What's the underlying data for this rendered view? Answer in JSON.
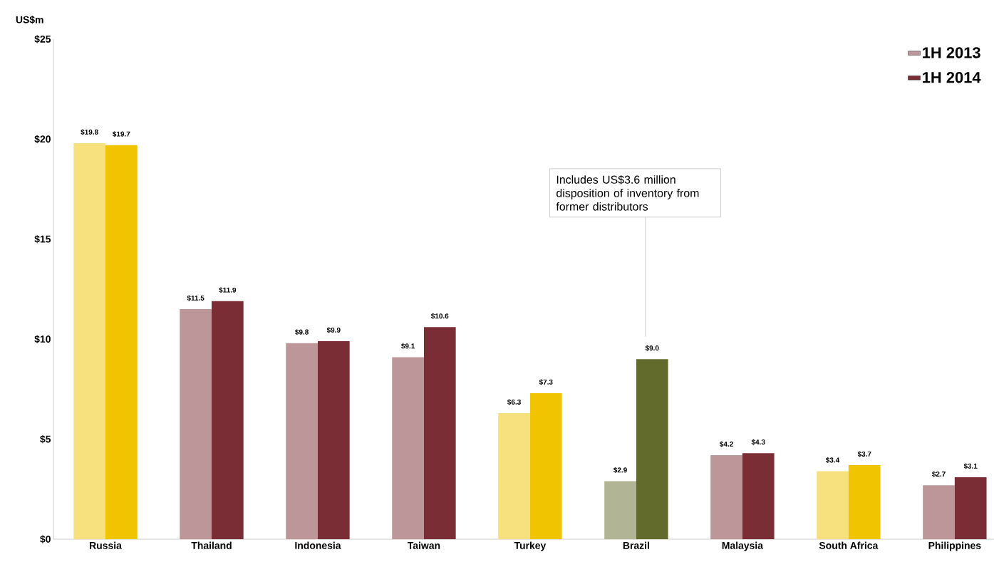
{
  "chart_data": {
    "type": "bar",
    "ylabel": "US$m",
    "categories": [
      "Russia",
      "Thailand",
      "Indonesia",
      "Taiwan",
      "Turkey",
      "Brazil",
      "Malaysia",
      "South Africa",
      "Philippines"
    ],
    "series": [
      {
        "name": "1H 2013",
        "color": "#bd969a",
        "values": [
          19.8,
          11.5,
          9.8,
          9.1,
          6.3,
          2.9,
          4.2,
          3.4,
          2.7
        ],
        "colors": [
          "#f7e17f",
          "#bd969a",
          "#bd969a",
          "#bd969a",
          "#f7e17f",
          "#b1b595",
          "#bd969a",
          "#f7e17f",
          "#bd969a"
        ],
        "value_labels": [
          "$19.8",
          "$11.5",
          "$9.8",
          "$9.1",
          "$6.3",
          "$2.9",
          "$4.2",
          "$3.4",
          "$2.7"
        ]
      },
      {
        "name": "1H 2014",
        "color": "#7b2d36",
        "values": [
          19.7,
          11.9,
          9.9,
          10.6,
          7.3,
          9.0,
          4.3,
          3.7,
          3.1
        ],
        "colors": [
          "#f0c400",
          "#7b2d36",
          "#7b2d36",
          "#7b2d36",
          "#f0c400",
          "#636b2c",
          "#7b2d36",
          "#f0c400",
          "#7b2d36"
        ],
        "value_labels": [
          "$19.7",
          "$11.9",
          "$9.9",
          "$10.6",
          "$7.3",
          "$9.0",
          "$4.3",
          "$3.7",
          "$3.1"
        ]
      }
    ],
    "ylim": [
      0,
      25
    ],
    "yticks": [
      {
        "value": 0,
        "label": "$0"
      },
      {
        "value": 5,
        "label": "$5"
      },
      {
        "value": 10,
        "label": "$10"
      },
      {
        "value": 15,
        "label": "$15"
      },
      {
        "value": 20,
        "label": "$20"
      },
      {
        "value": 25,
        "label": "$25"
      }
    ],
    "annotations": [
      "Includes US$3.6 million disposition of inventory from former distributors"
    ],
    "grid": false,
    "legend": "top right"
  }
}
